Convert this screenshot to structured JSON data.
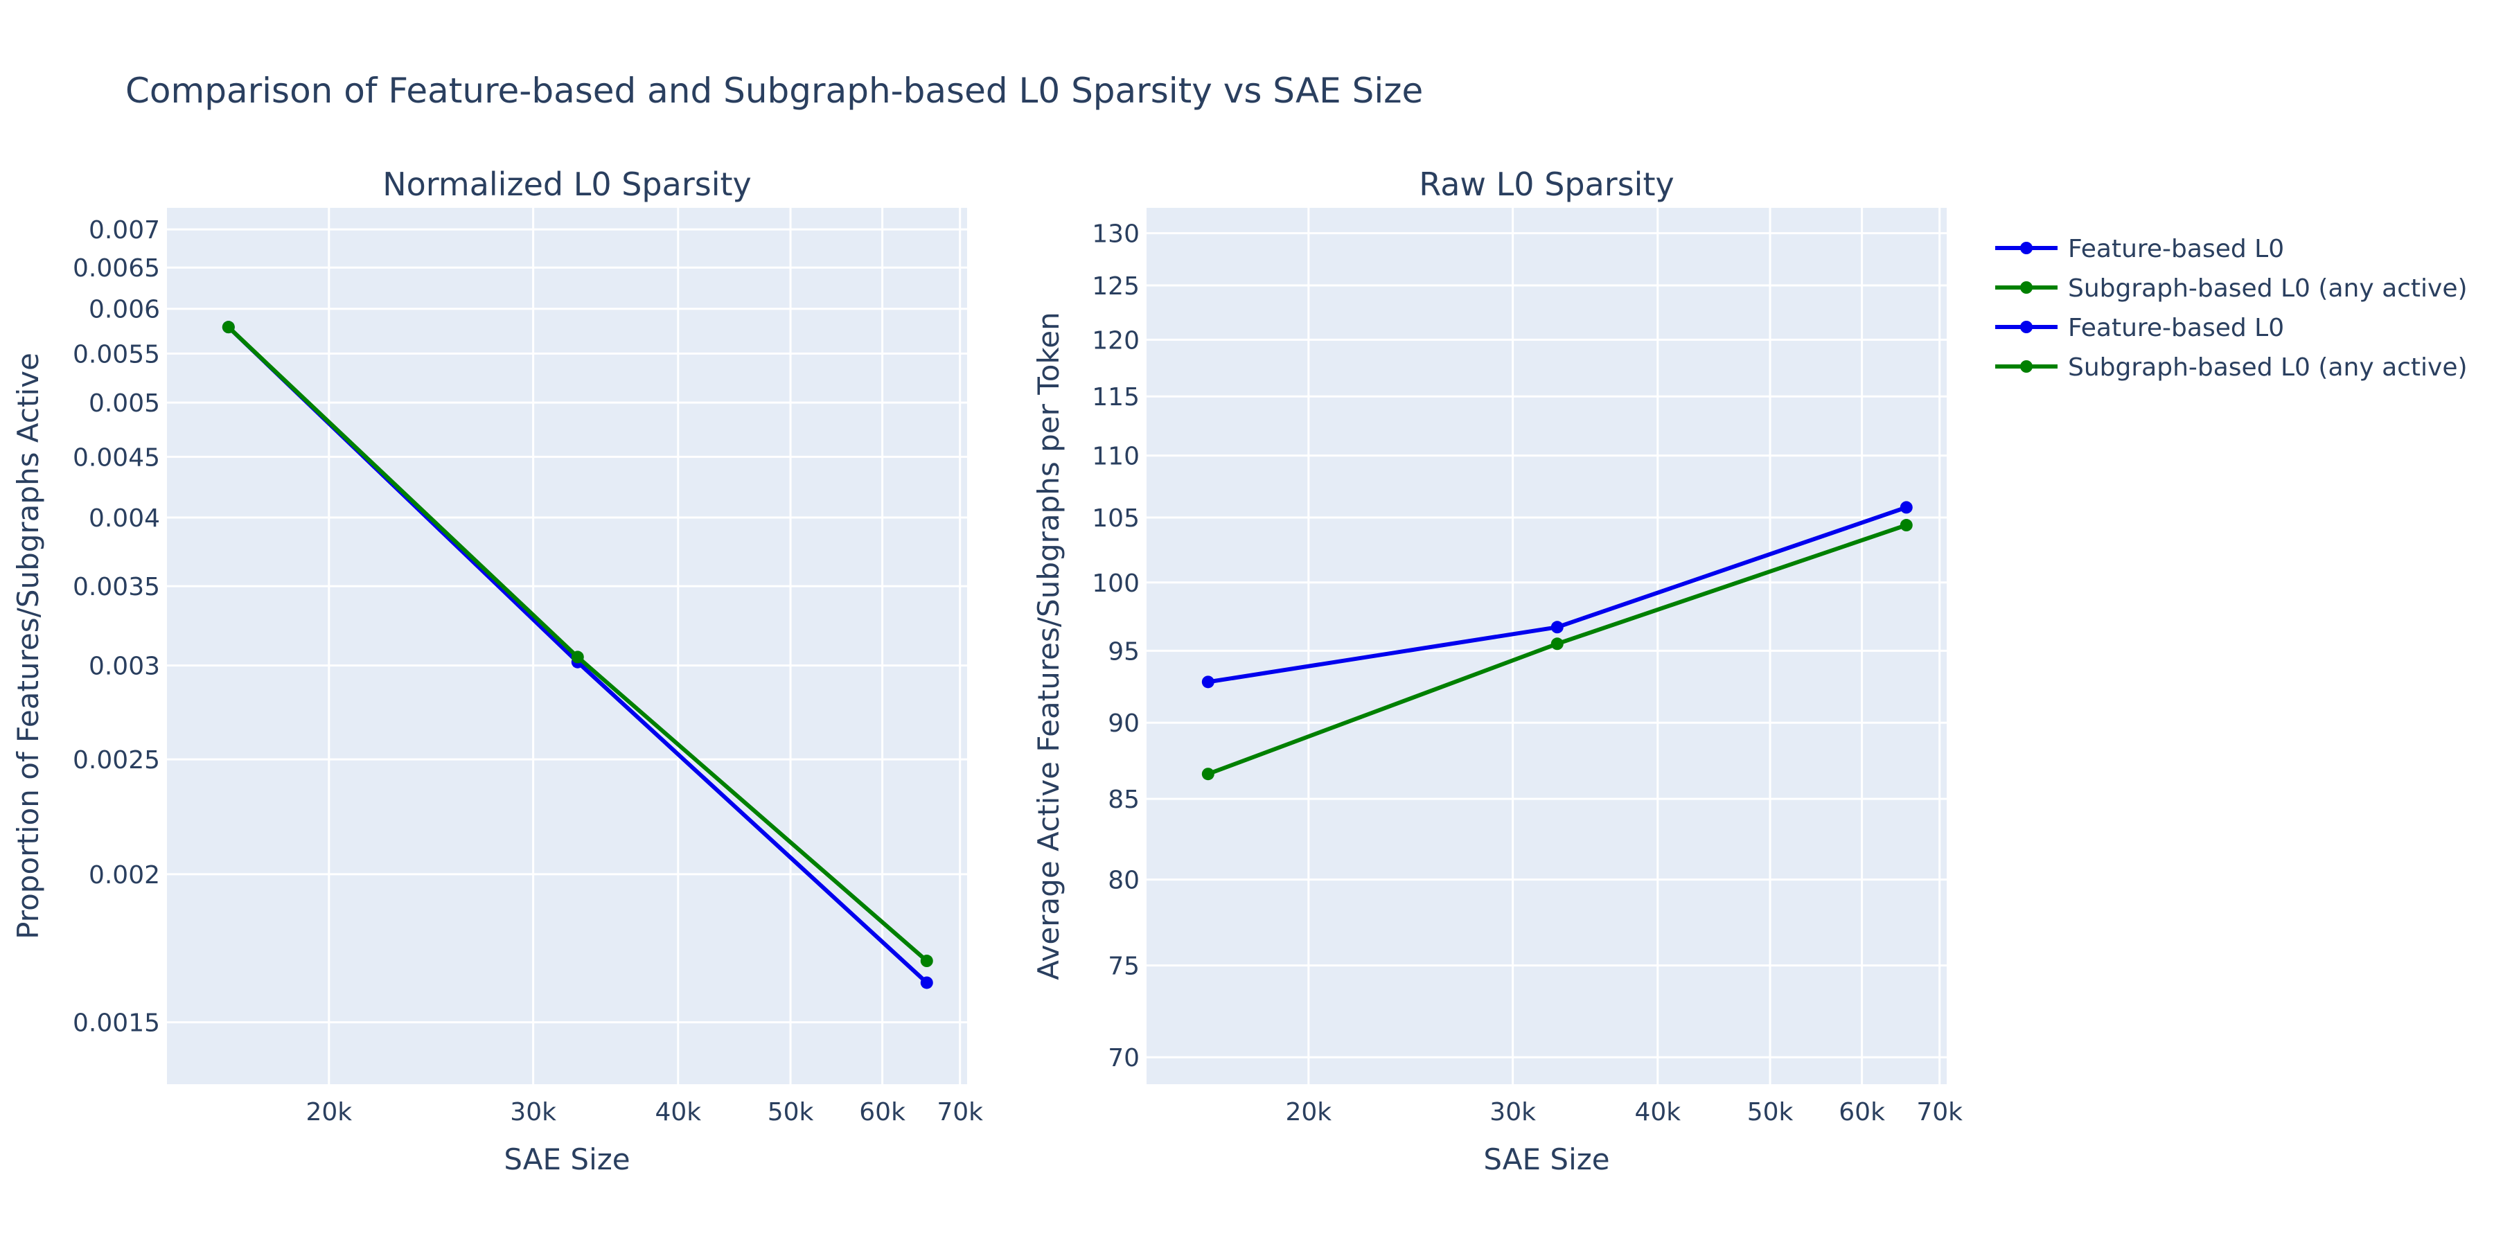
{
  "title": "Comparison of Feature-based and Subgraph-based L0 Sparsity vs SAE Size",
  "colors": {
    "background": "#ffffff",
    "plot_background": "#e5ecf6",
    "grid": "#ffffff",
    "text": "#2a3f5f",
    "feature_series": "#0000ee",
    "subgraph_series": "#008000"
  },
  "legend": {
    "placement": "right",
    "entries": [
      {
        "label": "Feature-based L0",
        "color": "#0000ee"
      },
      {
        "label": "Subgraph-based L0 (any active)",
        "color": "#008000"
      },
      {
        "label": "Feature-based L0",
        "color": "#0000ee"
      },
      {
        "label": "Subgraph-based L0 (any active)",
        "color": "#008000"
      }
    ]
  },
  "chart_data": [
    {
      "type": "line",
      "title": "Normalized L0 Sparsity",
      "xlabel": "SAE Size",
      "ylabel": "Proportion of Features/Subgraphs Active",
      "xscale": "log",
      "yscale": "log",
      "xlim": [
        14500,
        71000
      ],
      "ylim": [
        0.00133,
        0.0073
      ],
      "xticks": [
        20000,
        30000,
        40000,
        50000,
        60000,
        70000
      ],
      "xtick_labels": [
        "20k",
        "30k",
        "40k",
        "50k",
        "60k",
        "70k"
      ],
      "yticks": [
        0.0015,
        0.002,
        0.0025,
        0.003,
        0.0035,
        0.004,
        0.0045,
        0.005,
        0.0055,
        0.006,
        0.0065,
        0.007
      ],
      "ytick_labels": [
        "0.0015",
        "0.002",
        "0.0025",
        "0.003",
        "0.0035",
        "0.004",
        "0.0045",
        "0.005",
        "0.0055",
        "0.006",
        "0.0065",
        "0.007"
      ],
      "grid": true,
      "series": [
        {
          "name": "Feature-based L0",
          "color": "#0000ee",
          "x": [
            16384,
            32768,
            65536
          ],
          "y": [
            0.00579,
            0.00302,
            0.00162
          ]
        },
        {
          "name": "Subgraph-based L0 (any active)",
          "color": "#008000",
          "x": [
            16384,
            32768,
            65536
          ],
          "y": [
            0.00579,
            0.00305,
            0.00169
          ]
        }
      ]
    },
    {
      "type": "line",
      "title": "Raw L0 Sparsity",
      "xlabel": "SAE Size",
      "ylabel": "Average Active Features/Subgraphs per Token",
      "xscale": "log",
      "yscale": "log",
      "xlim": [
        14500,
        71000
      ],
      "ylim": [
        68.6,
        132.5
      ],
      "xticks": [
        20000,
        30000,
        40000,
        50000,
        60000,
        70000
      ],
      "xtick_labels": [
        "20k",
        "30k",
        "40k",
        "50k",
        "60k",
        "70k"
      ],
      "yticks": [
        70,
        75,
        80,
        85,
        90,
        95,
        100,
        105,
        110,
        115,
        120,
        125,
        130
      ],
      "ytick_labels": [
        "70",
        "75",
        "80",
        "85",
        "90",
        "95",
        "100",
        "105",
        "110",
        "115",
        "120",
        "125",
        "130"
      ],
      "grid": true,
      "series": [
        {
          "name": "Feature-based L0",
          "color": "#0000ee",
          "x": [
            16384,
            32768,
            65536
          ],
          "y": [
            92.8,
            96.7,
            105.8
          ]
        },
        {
          "name": "Subgraph-based L0 (any active)",
          "color": "#008000",
          "x": [
            16384,
            32768,
            65536
          ],
          "y": [
            86.6,
            95.5,
            104.4
          ]
        }
      ]
    }
  ]
}
